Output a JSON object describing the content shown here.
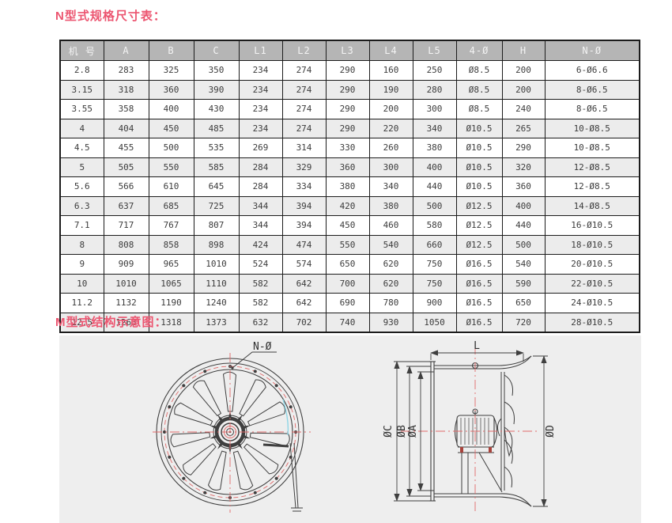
{
  "sections": {
    "n_table_title": "N型式规格尺寸表：",
    "m_diagram_title": "M型式结构示意图："
  },
  "table": {
    "headers": [
      "机 号",
      "A",
      "B",
      "C",
      "L1",
      "L2",
      "L3",
      "L4",
      "L5",
      "4-Ø",
      "H",
      "N-Ø"
    ],
    "rows": [
      [
        "2.8",
        "283",
        "325",
        "350",
        "234",
        "274",
        "290",
        "160",
        "250",
        "Ø8.5",
        "200",
        "6-Ø6.6"
      ],
      [
        "3.15",
        "318",
        "360",
        "390",
        "234",
        "274",
        "290",
        "190",
        "280",
        "Ø8.5",
        "200",
        "8-Ø6.5"
      ],
      [
        "3.55",
        "358",
        "400",
        "430",
        "234",
        "274",
        "290",
        "200",
        "300",
        "Ø8.5",
        "240",
        "8-Ø6.5"
      ],
      [
        "4",
        "404",
        "450",
        "485",
        "234",
        "274",
        "290",
        "220",
        "340",
        "Ø10.5",
        "265",
        "10-Ø8.5"
      ],
      [
        "4.5",
        "455",
        "500",
        "535",
        "269",
        "314",
        "330",
        "260",
        "380",
        "Ø10.5",
        "290",
        "10-Ø8.5"
      ],
      [
        "5",
        "505",
        "550",
        "585",
        "284",
        "329",
        "360",
        "300",
        "400",
        "Ø10.5",
        "320",
        "12-Ø8.5"
      ],
      [
        "5.6",
        "566",
        "610",
        "645",
        "284",
        "334",
        "380",
        "340",
        "440",
        "Ø10.5",
        "360",
        "12-Ø8.5"
      ],
      [
        "6.3",
        "637",
        "685",
        "725",
        "344",
        "394",
        "420",
        "380",
        "500",
        "Ø12.5",
        "400",
        "14-Ø8.5"
      ],
      [
        "7.1",
        "717",
        "767",
        "807",
        "344",
        "394",
        "450",
        "460",
        "580",
        "Ø12.5",
        "440",
        "16-Ø10.5"
      ],
      [
        "8",
        "808",
        "858",
        "898",
        "424",
        "474",
        "550",
        "540",
        "660",
        "Ø12.5",
        "500",
        "18-Ø10.5"
      ],
      [
        "9",
        "909",
        "965",
        "1010",
        "524",
        "574",
        "650",
        "620",
        "750",
        "Ø16.5",
        "540",
        "20-Ø10.5"
      ],
      [
        "10",
        "1010",
        "1065",
        "1110",
        "582",
        "642",
        "700",
        "620",
        "750",
        "Ø16.5",
        "590",
        "22-Ø10.5"
      ],
      [
        "11.2",
        "1132",
        "1190",
        "1240",
        "582",
        "642",
        "690",
        "780",
        "900",
        "Ø16.5",
        "650",
        "24-Ø10.5"
      ],
      [
        "12.5",
        "1263",
        "1318",
        "1373",
        "632",
        "702",
        "740",
        "930",
        "1050",
        "Ø16.5",
        "720",
        "28-Ø10.5"
      ]
    ]
  },
  "diagram": {
    "front_label": "N-Ø",
    "dim_l": "L",
    "dim_c": "ØC",
    "dim_b": "ØB",
    "dim_a": "ØA",
    "dim_d": "ØD"
  },
  "colors": {
    "title_pink": "#ec5570",
    "header_bg": "#b5b5b5",
    "row_alt_bg": "#ececec",
    "table_border": "#1c1c1c",
    "panel_bg": "#eeeeee",
    "drawing_line": "#3f3f3f",
    "centerline_red": "#e06a6a",
    "accent_cyan": "#8fd6e6",
    "bolt_red": "#a8433c"
  }
}
